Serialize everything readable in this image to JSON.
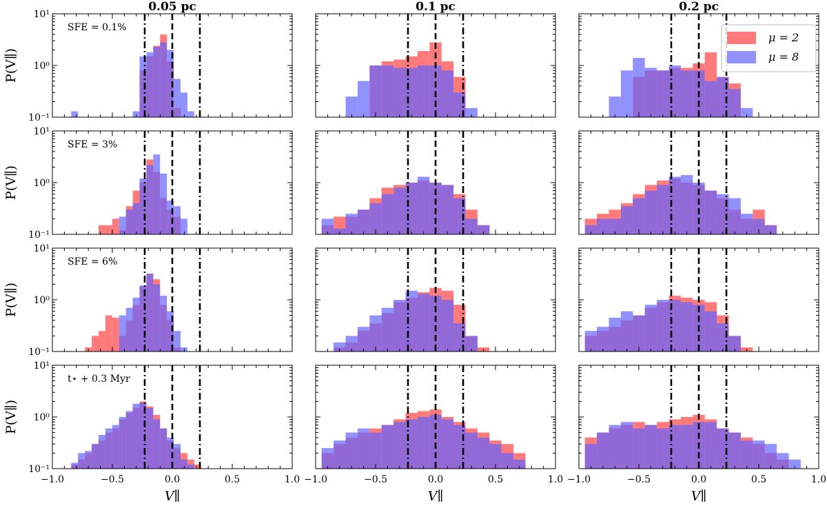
{
  "chart_data": {
    "type": "histogram-grid",
    "column_titles": [
      "0.05 pc",
      "0.1 pc",
      "0.2 pc"
    ],
    "row_annotations": [
      "SFE = 0.1%",
      "SFE = 3%",
      "SFE = 6%",
      "t⋆ + 0.3 Myr"
    ],
    "ylabel": "P(V∥)",
    "xlabel": "V∥",
    "xlim": [
      -1.0,
      1.0
    ],
    "ylim": [
      0.1,
      10
    ],
    "yscale": "log",
    "xticks": [
      -1.0,
      -0.5,
      0.0,
      0.5,
      1.0
    ],
    "xtick_labels": [
      "−1.0",
      "−0.5",
      "0.0",
      "0.5",
      "1.0"
    ],
    "ytick_labels": [
      "10⁻¹",
      "10⁰",
      "10¹"
    ],
    "reference_lines": [
      {
        "x": -0.23,
        "style": "dashdot"
      },
      {
        "x": 0.0,
        "style": "dashed"
      },
      {
        "x": 0.23,
        "style": "dashdot"
      }
    ],
    "legend": {
      "location": "upper right of top-right panel",
      "entries": [
        "μ = 2",
        "μ = 8"
      ]
    },
    "series_styles": [
      {
        "name": "μ = 2",
        "color": "#ff6464",
        "alpha": 0.85
      },
      {
        "name": "μ = 8",
        "color": "#6464ff",
        "alpha": 0.7
      }
    ],
    "panels": [
      {
        "row": 0,
        "col": 0,
        "x0": -0.9,
        "binw": 0.057,
        "series": [
          {
            "name": "μ = 2",
            "values": [
              0,
              0,
              0,
              0,
              0,
              0,
              0,
              0,
              0,
              0,
              0,
              0.8,
              1.5,
              2.4,
              4.0,
              1.2,
              0.15,
              0,
              0,
              0,
              0,
              0,
              0,
              0,
              0,
              0,
              0,
              0,
              0,
              0,
              0,
              0,
              0,
              0,
              0
            ]
          },
          {
            "name": "μ = 8",
            "values": [
              0,
              0.13,
              0,
              0,
              0,
              0,
              0,
              0,
              0,
              0,
              0.13,
              1.5,
              1.8,
              2.3,
              2.8,
              2.0,
              0.55,
              0.3,
              0.13,
              0,
              0,
              0,
              0,
              0,
              0,
              0,
              0,
              0,
              0,
              0,
              0,
              0,
              0,
              0,
              0
            ]
          }
        ]
      },
      {
        "row": 0,
        "col": 1,
        "x0": -0.95,
        "binw": 0.1,
        "series": [
          {
            "name": "μ = 2",
            "values": [
              0,
              0,
              0,
              0,
              1.0,
              1.2,
              1.3,
              1.5,
              1.9,
              2.8,
              1.2,
              0.6,
              0,
              0,
              0,
              0,
              0,
              0,
              0,
              0
            ]
          },
          {
            "name": "μ = 8",
            "values": [
              0,
              0,
              0.25,
              0.5,
              1.0,
              1.0,
              0.9,
              0.9,
              1.0,
              1.0,
              0.8,
              0.3,
              0.15,
              0,
              0,
              0,
              0,
              0,
              0,
              0
            ]
          }
        ]
      },
      {
        "row": 0,
        "col": 2,
        "x0": -0.95,
        "binw": 0.1,
        "series": [
          {
            "name": "μ = 2",
            "values": [
              0,
              0,
              0,
              0,
              0.6,
              0.8,
              0.8,
              0.9,
              0.9,
              1.1,
              1.8,
              0.6,
              0.45,
              0,
              0,
              0,
              0,
              0,
              0,
              0
            ]
          },
          {
            "name": "μ = 8",
            "values": [
              0,
              0,
              0.25,
              0.8,
              1.4,
              0.9,
              0.8,
              1.0,
              0.8,
              0.8,
              0.5,
              0.6,
              0.35,
              0.15,
              0,
              0,
              0,
              0,
              0,
              0
            ]
          }
        ]
      },
      {
        "row": 1,
        "col": 0,
        "x0": -0.9,
        "binw": 0.057,
        "series": [
          {
            "name": "μ = 2",
            "values": [
              0,
              0,
              0,
              0,
              0,
              0.15,
              0.15,
              0.2,
              0.12,
              0.35,
              0.7,
              1.0,
              2.8,
              1.6,
              0.5,
              0.3,
              0.22,
              0,
              0,
              0,
              0,
              0,
              0,
              0,
              0,
              0,
              0,
              0,
              0,
              0,
              0,
              0,
              0,
              0,
              0
            ]
          },
          {
            "name": "μ = 8",
            "values": [
              0,
              0,
              0,
              0,
              0,
              0,
              0,
              0,
              0.22,
              0.3,
              0.4,
              1.2,
              2.2,
              3.5,
              1.5,
              0.45,
              0.35,
              0.2,
              0,
              0,
              0,
              0,
              0,
              0,
              0,
              0,
              0,
              0,
              0,
              0,
              0,
              0,
              0,
              0,
              0
            ]
          }
        ]
      },
      {
        "row": 1,
        "col": 1,
        "x0": -0.95,
        "binw": 0.1,
        "series": [
          {
            "name": "μ = 2",
            "values": [
              0.15,
              0.22,
              0.22,
              0.3,
              0.5,
              0.8,
              0.9,
              1.0,
              1.1,
              1.0,
              0.9,
              0.6,
              0.3,
              0.15,
              0,
              0,
              0,
              0,
              0,
              0
            ]
          },
          {
            "name": "μ = 8",
            "values": [
              0.2,
              0.13,
              0.25,
              0.3,
              0.4,
              0.6,
              0.8,
              1.0,
              1.3,
              1.0,
              0.9,
              0.5,
              0.2,
              0.15,
              0,
              0,
              0,
              0,
              0,
              0
            ]
          }
        ]
      },
      {
        "row": 1,
        "col": 2,
        "x0": -0.95,
        "binw": 0.1,
        "series": [
          {
            "name": "μ = 2",
            "values": [
              0.2,
              0.25,
              0.3,
              0.4,
              0.6,
              0.9,
              1.1,
              1.2,
              1.0,
              0.9,
              0.7,
              0.5,
              0.3,
              0.2,
              0.3,
              0.15,
              0,
              0,
              0,
              0
            ]
          },
          {
            "name": "μ = 8",
            "values": [
              0.15,
              0.2,
              0.2,
              0.35,
              0.5,
              0.7,
              0.9,
              1.3,
              1.4,
              1.0,
              0.7,
              0.6,
              0.5,
              0.25,
              0.2,
              0.15,
              0,
              0,
              0,
              0
            ]
          }
        ]
      },
      {
        "row": 2,
        "col": 0,
        "x0": -0.9,
        "binw": 0.057,
        "series": [
          {
            "name": "μ = 2",
            "values": [
              0,
              0,
              0,
              0.12,
              0.2,
              0.25,
              0.5,
              0.45,
              0.2,
              0.4,
              0.8,
              1.8,
              3.2,
              2.5,
              0.8,
              0.4,
              0.12,
              0,
              0,
              0,
              0,
              0,
              0,
              0,
              0,
              0,
              0,
              0,
              0,
              0,
              0,
              0,
              0,
              0,
              0
            ]
          },
          {
            "name": "μ = 8",
            "values": [
              0,
              0,
              0,
              0,
              0,
              0,
              0,
              0,
              0.5,
              0.7,
              1.1,
              1.9,
              3.2,
              2.0,
              1.2,
              0.6,
              0.25,
              0.12,
              0,
              0,
              0,
              0,
              0,
              0,
              0,
              0,
              0,
              0,
              0,
              0,
              0,
              0,
              0,
              0,
              0
            ]
          }
        ]
      },
      {
        "row": 2,
        "col": 1,
        "x0": -0.95,
        "binw": 0.1,
        "series": [
          {
            "name": "μ = 2",
            "values": [
              0,
              0.12,
              0.15,
              0.25,
              0.35,
              0.55,
              0.9,
              1.1,
              1.4,
              1.7,
              1.5,
              0.8,
              0.2,
              0.12,
              0,
              0,
              0,
              0,
              0,
              0
            ]
          },
          {
            "name": "μ = 8",
            "values": [
              0,
              0.15,
              0.2,
              0.3,
              0.5,
              0.7,
              1.0,
              1.5,
              1.3,
              1.2,
              1.0,
              0.35,
              0.2,
              0,
              0,
              0,
              0,
              0,
              0,
              0
            ]
          }
        ]
      },
      {
        "row": 2,
        "col": 2,
        "x0": -0.95,
        "binw": 0.1,
        "series": [
          {
            "name": "μ = 2",
            "values": [
              0.2,
              0.25,
              0.3,
              0.4,
              0.5,
              0.7,
              0.9,
              1.2,
              1.1,
              1.0,
              0.9,
              0.5,
              0.2,
              0.12,
              0,
              0,
              0,
              0,
              0,
              0
            ]
          },
          {
            "name": "μ = 8",
            "values": [
              0.25,
              0.3,
              0.45,
              0.6,
              0.5,
              0.8,
              1.0,
              1.0,
              0.9,
              0.8,
              0.6,
              0.35,
              0.2,
              0,
              0,
              0,
              0,
              0,
              0,
              0
            ]
          }
        ]
      },
      {
        "row": 3,
        "col": 0,
        "x0": -0.9,
        "binw": 0.057,
        "series": [
          {
            "name": "μ = 2",
            "values": [
              0,
              0.12,
              0.15,
              0.2,
              0.3,
              0.35,
              0.5,
              0.6,
              0.9,
              1.2,
              1.5,
              2.0,
              1.6,
              1.1,
              0.6,
              0.35,
              0.25,
              0.2,
              0.15,
              0.12,
              0,
              0,
              0,
              0,
              0,
              0,
              0,
              0,
              0,
              0,
              0,
              0,
              0,
              0,
              0
            ]
          },
          {
            "name": "μ = 8",
            "values": [
              0,
              0.13,
              0.2,
              0.22,
              0.3,
              0.45,
              0.6,
              0.7,
              1.0,
              1.3,
              1.8,
              1.9,
              1.5,
              0.9,
              0.6,
              0.4,
              0.3,
              0.15,
              0.12,
              0,
              0,
              0,
              0,
              0,
              0,
              0,
              0,
              0,
              0,
              0,
              0,
              0,
              0,
              0,
              0
            ]
          }
        ]
      },
      {
        "row": 3,
        "col": 1,
        "x0": -0.95,
        "binw": 0.1,
        "series": [
          {
            "name": "μ = 2",
            "values": [
              0.2,
              0.3,
              0.4,
              0.5,
              0.6,
              0.7,
              0.9,
              1.2,
              1.3,
              1.4,
              1.0,
              0.8,
              0.6,
              0.5,
              0.35,
              0.3,
              0.2,
              0,
              0,
              0
            ]
          },
          {
            "name": "μ = 8",
            "values": [
              0.25,
              0.35,
              0.5,
              0.6,
              0.5,
              0.7,
              0.8,
              0.9,
              1.0,
              1.1,
              0.9,
              0.7,
              0.5,
              0.4,
              0.3,
              0.2,
              0.15,
              0,
              0,
              0
            ]
          }
        ]
      },
      {
        "row": 3,
        "col": 2,
        "x0": -0.95,
        "binw": 0.1,
        "series": [
          {
            "name": "μ = 2",
            "values": [
              0.4,
              0.5,
              0.6,
              0.7,
              0.8,
              0.7,
              0.8,
              0.9,
              1.0,
              1.1,
              0.9,
              0.6,
              0.5,
              0.4,
              0.3,
              0.2,
              0.15,
              0,
              0,
              0
            ]
          },
          {
            "name": "μ = 8",
            "values": [
              0.3,
              0.5,
              0.7,
              0.8,
              0.6,
              0.7,
              0.6,
              0.7,
              0.7,
              0.8,
              0.8,
              0.6,
              0.5,
              0.35,
              0.35,
              0.3,
              0.2,
              0.15,
              0,
              0
            ]
          }
        ]
      }
    ]
  }
}
